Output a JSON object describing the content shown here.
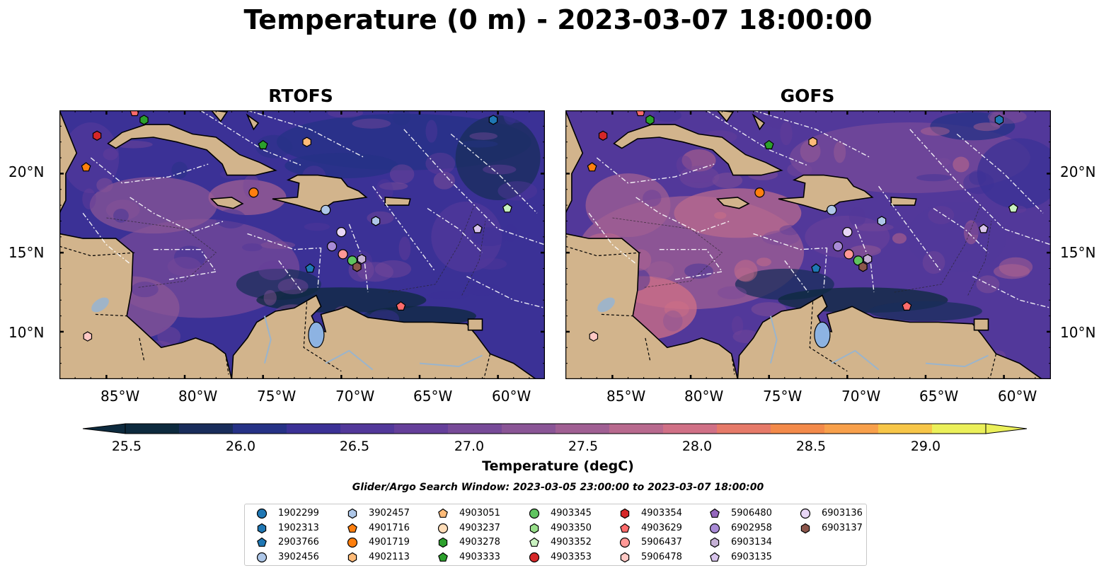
{
  "figure": {
    "title": "Temperature (0 m) - 2023-03-07 18:00:00",
    "panels": [
      {
        "title": "RTOFS",
        "variant": "rtofs"
      },
      {
        "title": "GOFS",
        "variant": "gofs"
      }
    ],
    "lat_ticks": [
      "20°N",
      "15°N",
      "10°N"
    ],
    "lon_ticks": [
      "85°W",
      "80°W",
      "75°W",
      "70°W",
      "65°W",
      "60°W"
    ],
    "extent": {
      "lon_min": -88,
      "lon_max": -57,
      "lat_min": 7,
      "lat_max": 24
    }
  },
  "colorbar": {
    "label": "Temperature (degC)",
    "ticks": [
      "25.5",
      "26.0",
      "26.5",
      "27.0",
      "27.5",
      "28.0",
      "28.5",
      "29.0"
    ],
    "range": [
      25.5,
      29.25
    ],
    "extend": "both",
    "colors": [
      "#0d2a3e",
      "#192d5b",
      "#263286",
      "#3b3196",
      "#52389a",
      "#653f9a",
      "#774a98",
      "#8a5596",
      "#a05f93",
      "#b8698e",
      "#d07086",
      "#e67a69",
      "#f38a4a",
      "#f8a04b",
      "#f7c648",
      "#ebf05a"
    ]
  },
  "search_window": "Glider/Argo Search Window: 2023-03-05 23:00:00 to 2023-03-07 18:00:00",
  "legend": {
    "items": [
      {
        "id": "1902299",
        "marker": "circle",
        "color": "#1f77b4"
      },
      {
        "id": "1902313",
        "marker": "hexagon",
        "color": "#1f77b4"
      },
      {
        "id": "2903766",
        "marker": "pentagon",
        "color": "#1f77b4"
      },
      {
        "id": "3902456",
        "marker": "circle",
        "color": "#aec7e8"
      },
      {
        "id": "3902457",
        "marker": "hexagon",
        "color": "#aec7e8"
      },
      {
        "id": "4901716",
        "marker": "pentagon",
        "color": "#ff7f0e"
      },
      {
        "id": "4901719",
        "marker": "circle",
        "color": "#ff7f0e"
      },
      {
        "id": "4902113",
        "marker": "hexagon",
        "color": "#ffbb78"
      },
      {
        "id": "4903051",
        "marker": "pentagon",
        "color": "#ffbb78"
      },
      {
        "id": "4903237",
        "marker": "circle",
        "color": "#ffddb8"
      },
      {
        "id": "4903278",
        "marker": "hexagon",
        "color": "#2ca02c"
      },
      {
        "id": "4903333",
        "marker": "pentagon",
        "color": "#2ca02c"
      },
      {
        "id": "4903345",
        "marker": "circle",
        "color": "#5fc45f"
      },
      {
        "id": "4903350",
        "marker": "hexagon",
        "color": "#98df8a"
      },
      {
        "id": "4903352",
        "marker": "pentagon",
        "color": "#c9f2c0"
      },
      {
        "id": "4903353",
        "marker": "circle",
        "color": "#d62728"
      },
      {
        "id": "4903354",
        "marker": "hexagon",
        "color": "#d62728"
      },
      {
        "id": "4903629",
        "marker": "pentagon",
        "color": "#ff6b6b"
      },
      {
        "id": "5906437",
        "marker": "circle",
        "color": "#ff9896"
      },
      {
        "id": "5906478",
        "marker": "hexagon",
        "color": "#ffc8c4"
      },
      {
        "id": "5906480",
        "marker": "pentagon",
        "color": "#9467bd"
      },
      {
        "id": "6902958",
        "marker": "circle",
        "color": "#a98bd6"
      },
      {
        "id": "6903134",
        "marker": "hexagon",
        "color": "#c5b0d5"
      },
      {
        "id": "6903135",
        "marker": "pentagon",
        "color": "#d8c4ec"
      },
      {
        "id": "6903136",
        "marker": "circle",
        "color": "#e8d6f6"
      },
      {
        "id": "6903137",
        "marker": "hexagon",
        "color": "#8c564b"
      }
    ]
  },
  "floats": [
    {
      "id": "4901716",
      "lon": -86.3,
      "lat": 20.4
    },
    {
      "id": "4903354",
      "lon": -85.6,
      "lat": 22.4
    },
    {
      "id": "4903629",
      "lon": -83.2,
      "lat": 23.9
    },
    {
      "id": "4903278",
      "lon": -82.6,
      "lat": 23.4
    },
    {
      "id": "1902313",
      "lon": -60.3,
      "lat": 23.4
    },
    {
      "id": "4903333",
      "lon": -75.0,
      "lat": 21.8
    },
    {
      "id": "4902113",
      "lon": -72.2,
      "lat": 22.0
    },
    {
      "id": "4901719",
      "lon": -75.6,
      "lat": 18.8
    },
    {
      "id": "3902456",
      "lon": -71.0,
      "lat": 17.7
    },
    {
      "id": "3902457",
      "lon": -67.8,
      "lat": 17.0
    },
    {
      "id": "4903352",
      "lon": -59.4,
      "lat": 17.8
    },
    {
      "id": "6903136",
      "lon": -70.0,
      "lat": 16.3
    },
    {
      "id": "6902958",
      "lon": -70.6,
      "lat": 15.4
    },
    {
      "id": "5906437",
      "lon": -69.9,
      "lat": 14.9
    },
    {
      "id": "4903345",
      "lon": -69.3,
      "lat": 14.5
    },
    {
      "id": "6903134",
      "lon": -68.7,
      "lat": 14.6
    },
    {
      "id": "6903137",
      "lon": -69.0,
      "lat": 14.1
    },
    {
      "id": "2903766",
      "lon": -72.0,
      "lat": 14.0
    },
    {
      "id": "4903629",
      "lon": -66.2,
      "lat": 11.6
    },
    {
      "id": "6903135",
      "lon": -61.3,
      "lat": 16.5
    },
    {
      "id": "5906478",
      "lon": -86.2,
      "lat": 9.7
    }
  ]
}
